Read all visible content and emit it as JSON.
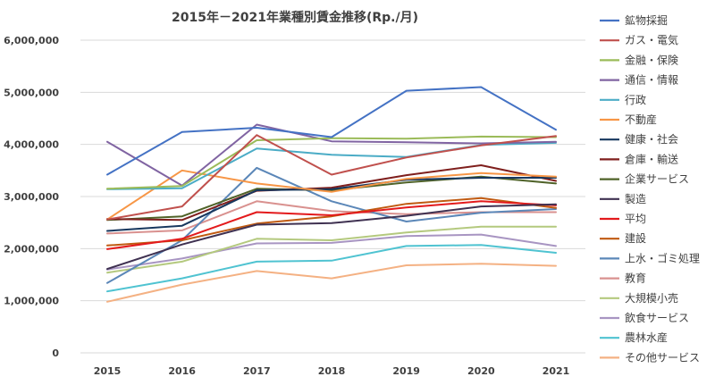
{
  "chart_data": {
    "type": "line",
    "title": "2015年－2021年業種別賃金推移(Rp./月)",
    "xlabel": "",
    "ylabel": "",
    "categories": [
      "2015",
      "2016",
      "2017",
      "2018",
      "2019",
      "2020",
      "2021"
    ],
    "ylim": [
      0,
      6000000
    ],
    "yticks": [
      0,
      1000000,
      2000000,
      3000000,
      4000000,
      5000000,
      6000000
    ],
    "ytick_labels": [
      "0",
      "1,000,000",
      "2,000,000",
      "3,000,000",
      "4,000,000",
      "5,000,000",
      "6,000,000"
    ],
    "grid": true,
    "legend_position": "right",
    "series": [
      {
        "name": "鉱物採掘",
        "color": "#4472c4",
        "values": [
          3420000,
          4240000,
          4320000,
          4140000,
          5030000,
          5100000,
          4280000
        ]
      },
      {
        "name": "ガス・電気",
        "color": "#c0504d",
        "values": [
          2560000,
          2810000,
          4180000,
          3420000,
          3750000,
          3980000,
          4160000
        ]
      },
      {
        "name": "金融・保険",
        "color": "#9bbb59",
        "values": [
          3150000,
          3200000,
          4080000,
          4120000,
          4110000,
          4150000,
          4140000
        ]
      },
      {
        "name": "通信・情報",
        "color": "#8064a2",
        "values": [
          4050000,
          3210000,
          4380000,
          4060000,
          4040000,
          4020000,
          4050000
        ]
      },
      {
        "name": "行政",
        "color": "#4bacc6",
        "values": [
          3140000,
          3160000,
          3920000,
          3800000,
          3760000,
          3990000,
          4030000
        ]
      },
      {
        "name": "不動産",
        "color": "#f79646",
        "values": [
          2560000,
          3500000,
          3250000,
          3090000,
          3340000,
          3450000,
          3380000
        ]
      },
      {
        "name": "健康・社会",
        "color": "#17375e",
        "values": [
          2340000,
          2440000,
          3120000,
          3140000,
          3320000,
          3360000,
          3360000
        ]
      },
      {
        "name": "倉庫・輸送",
        "color": "#7f1f1d",
        "values": [
          2570000,
          2550000,
          3110000,
          3170000,
          3410000,
          3600000,
          3300000
        ]
      },
      {
        "name": "企業サービス",
        "color": "#4f6228",
        "values": [
          2550000,
          2620000,
          3150000,
          3120000,
          3270000,
          3380000,
          3250000
        ]
      },
      {
        "name": "製造",
        "color": "#3f3151",
        "values": [
          1610000,
          2080000,
          2460000,
          2490000,
          2630000,
          2810000,
          2850000
        ]
      },
      {
        "name": "平均",
        "color": "#e31a1c",
        "values": [
          1990000,
          2190000,
          2700000,
          2640000,
          2790000,
          2910000,
          2830000
        ]
      },
      {
        "name": "建設",
        "color": "#c05a11",
        "values": [
          2060000,
          2160000,
          2480000,
          2620000,
          2860000,
          2970000,
          2780000
        ]
      },
      {
        "name": "上水・ゴミ処理",
        "color": "#5b87b8",
        "values": [
          1340000,
          2160000,
          3550000,
          2910000,
          2520000,
          2690000,
          2760000
        ]
      },
      {
        "name": "教育",
        "color": "#d9918f",
        "values": [
          2290000,
          2350000,
          2910000,
          2720000,
          2660000,
          2700000,
          2700000
        ]
      },
      {
        "name": "大規模小売",
        "color": "#b4c97e",
        "values": [
          1540000,
          1750000,
          2190000,
          2160000,
          2310000,
          2420000,
          2420000
        ]
      },
      {
        "name": "飲食サービス",
        "color": "#a895c2",
        "values": [
          1600000,
          1810000,
          2100000,
          2110000,
          2240000,
          2270000,
          2050000
        ]
      },
      {
        "name": "農林水産",
        "color": "#4fc3d1",
        "values": [
          1180000,
          1430000,
          1750000,
          1770000,
          2050000,
          2070000,
          1920000
        ]
      },
      {
        "name": "その他サービス",
        "color": "#f4b183",
        "values": [
          980000,
          1310000,
          1570000,
          1430000,
          1680000,
          1710000,
          1670000
        ]
      }
    ]
  }
}
